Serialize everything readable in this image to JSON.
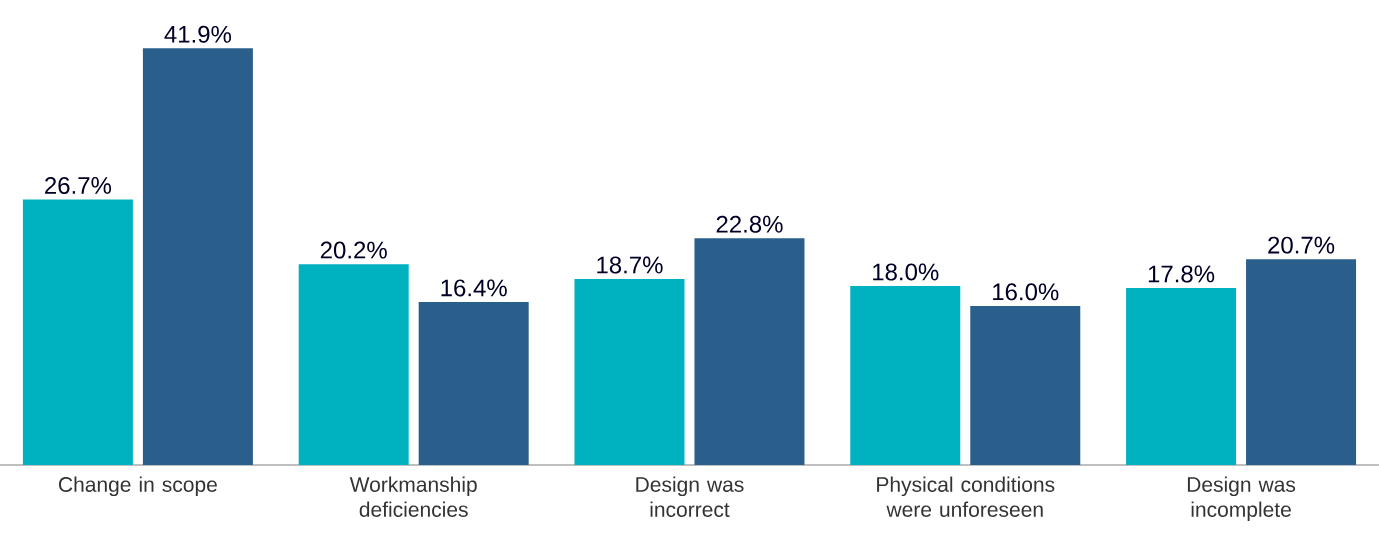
{
  "chart_data": {
    "type": "bar",
    "categories": [
      "Change in scope",
      "Workmanship deficiencies",
      "Design was incorrect",
      "Physical conditions were unforeseen",
      "Design was incomplete"
    ],
    "series": [
      {
        "color": "#00b2c0",
        "values": [
          26.7,
          20.2,
          18.7,
          18.0,
          17.8
        ],
        "value_labels": [
          "26.7%",
          "20.2%",
          "18.7%",
          "18.0%",
          "17.8%"
        ]
      },
      {
        "color": "#2a5f8c",
        "values": [
          41.9,
          16.4,
          22.8,
          16.0,
          20.7
        ],
        "value_labels": [
          "41.9%",
          "16.4%",
          "22.8%",
          "16.0%",
          "20.7%"
        ]
      }
    ]
  }
}
